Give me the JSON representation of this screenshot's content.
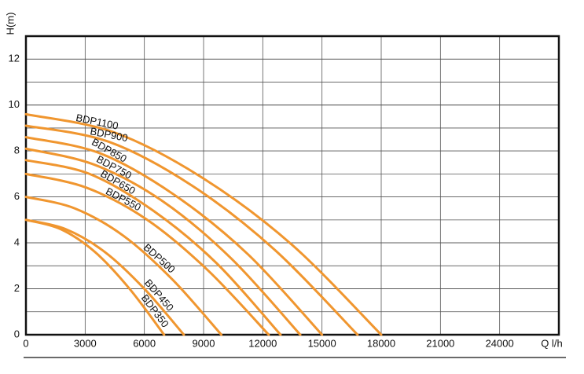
{
  "chart_data": {
    "type": "line",
    "y_label": "H(m)",
    "x_label": "Q l/h",
    "xlim": [
      0,
      27000
    ],
    "ylim": [
      0,
      13
    ],
    "xticks": [
      0,
      3000,
      6000,
      9000,
      12000,
      15000,
      18000,
      21000,
      24000
    ],
    "yticks": [
      0,
      2,
      4,
      6,
      8,
      10,
      12
    ],
    "grid": true,
    "series": [
      {
        "name": "BDP1100",
        "color": "#f0962f",
        "x": [
          0,
          4500,
          9000,
          13500,
          18000
        ],
        "values": [
          9.6,
          8.8,
          6.8,
          3.9,
          0
        ]
      },
      {
        "name": "BDP900",
        "color": "#f0962f",
        "x": [
          0,
          4200,
          8400,
          12600,
          16800
        ],
        "values": [
          9.1,
          8.4,
          6.5,
          3.7,
          0
        ]
      },
      {
        "name": "BDP850",
        "color": "#f0962f",
        "x": [
          0,
          3750,
          7500,
          11250,
          15000
        ],
        "values": [
          8.6,
          7.9,
          6.1,
          3.5,
          0
        ]
      },
      {
        "name": "BDP750",
        "color": "#f0962f",
        "x": [
          0,
          3475,
          6950,
          10425,
          13900
        ],
        "values": [
          8.1,
          7.4,
          5.8,
          3.3,
          0
        ]
      },
      {
        "name": "BDP650",
        "color": "#f0962f",
        "x": [
          0,
          3225,
          6450,
          9675,
          12900
        ],
        "values": [
          7.6,
          7.0,
          5.4,
          3.1,
          0
        ]
      },
      {
        "name": "BDP550",
        "color": "#f0962f",
        "x": [
          0,
          3075,
          6150,
          9225,
          12300
        ],
        "values": [
          7.0,
          6.4,
          5.0,
          2.8,
          0
        ]
      },
      {
        "name": "BDP500",
        "color": "#f0962f",
        "x": [
          0,
          2475,
          4950,
          7425,
          9900
        ],
        "values": [
          6.0,
          5.5,
          4.3,
          2.4,
          0
        ]
      },
      {
        "name": "BDP450",
        "color": "#f0962f",
        "x": [
          0,
          2000,
          4000,
          6000,
          8000
        ],
        "values": [
          5.0,
          4.6,
          3.6,
          2.0,
          0
        ]
      },
      {
        "name": "BDP350",
        "color": "#f0962f",
        "x": [
          0,
          1750,
          3500,
          5250,
          7000
        ],
        "values": [
          5.0,
          4.6,
          3.6,
          2.0,
          0
        ]
      }
    ]
  }
}
